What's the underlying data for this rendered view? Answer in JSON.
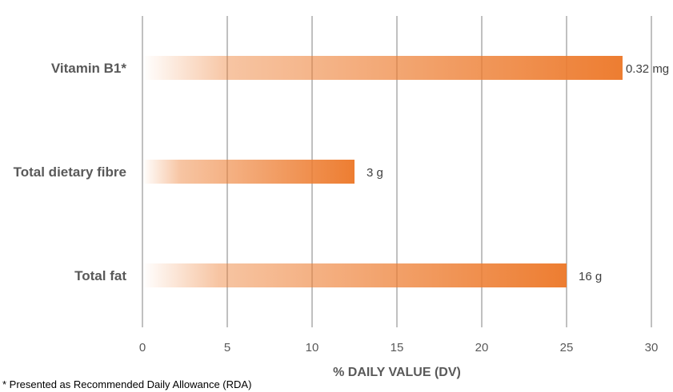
{
  "chart_data": {
    "type": "bar",
    "orientation": "horizontal",
    "categories": [
      "Vitamin B1*",
      "Total dietary fibre",
      "Total fat"
    ],
    "values": [
      28.3,
      12.5,
      25
    ],
    "data_labels": [
      "0.32 mg",
      "3 g",
      "16 g"
    ],
    "xlabel": "% DAILY VALUE (DV)",
    "ylabel": "",
    "xlim": [
      0,
      30
    ],
    "xticks": [
      0,
      5,
      10,
      15,
      20,
      25,
      30
    ],
    "grid": "vertical",
    "bar_color": "#ED7D31",
    "bar_fill": "gradient-fade-left",
    "gridline_color": "#C0C0C0"
  },
  "footnote": "* Presented as Recommended Daily Allowance (RDA)"
}
